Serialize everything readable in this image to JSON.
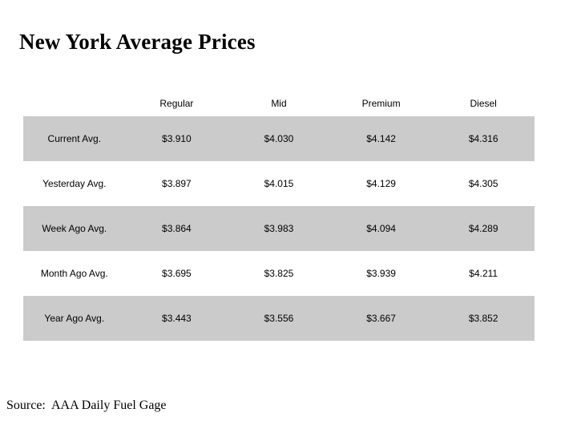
{
  "title": "New York Average Prices",
  "source_note": "Source:  AAA Daily Fuel Gage",
  "band_color": "#cbcbcb",
  "chart_data": {
    "type": "table",
    "title": "New York Average Prices",
    "columns": [
      "Regular",
      "Mid",
      "Premium",
      "Diesel"
    ],
    "rows": [
      {
        "label": "Current Avg.",
        "values": [
          "$3.910",
          "$4.030",
          "$4.142",
          "$4.316"
        ]
      },
      {
        "label": "Yesterday Avg.",
        "values": [
          "$3.897",
          "$4.015",
          "$4.129",
          "$4.305"
        ]
      },
      {
        "label": "Week Ago Avg.",
        "values": [
          "$3.864",
          "$3.983",
          "$4.094",
          "$4.289"
        ]
      },
      {
        "label": "Month Ago Avg.",
        "values": [
          "$3.695",
          "$3.825",
          "$3.939",
          "$4.211"
        ]
      },
      {
        "label": "Year Ago Avg.",
        "values": [
          "$3.443",
          "$3.556",
          "$3.667",
          "$3.852"
        ]
      }
    ]
  }
}
